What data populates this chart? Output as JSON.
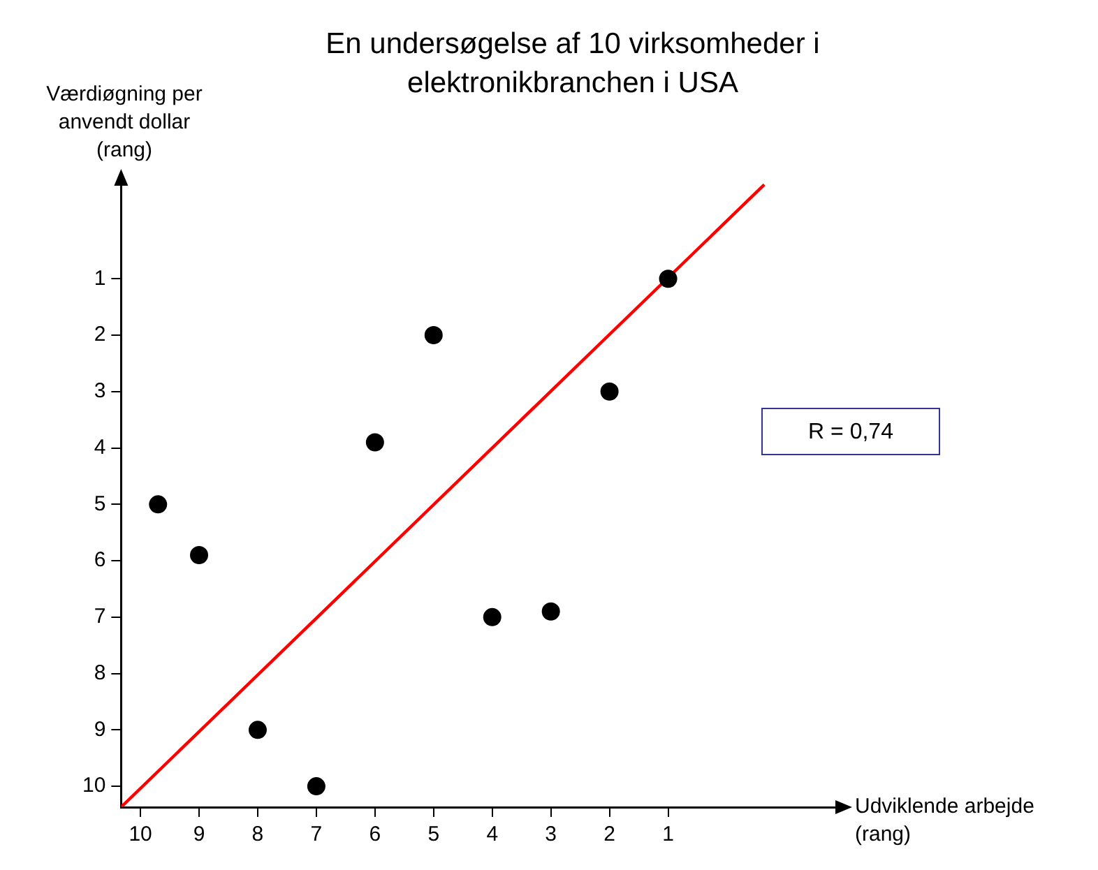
{
  "chart_data": {
    "type": "scatter",
    "title": "En undersøgelse af 10 virksomheder i elektronikbranchen i USA",
    "xlabel": "Udviklende arbejde (rang)",
    "ylabel": "Værdiøgning per anvendt dollar (rang)",
    "xlim": [
      10.33,
      -1.9
    ],
    "ylim": [
      10.37,
      -0.7
    ],
    "xticks": [
      10,
      9,
      8,
      7,
      6,
      5,
      4,
      3,
      2,
      1
    ],
    "yticks": [
      1,
      2,
      3,
      4,
      5,
      6,
      7,
      8,
      9,
      10
    ],
    "grid": false,
    "legend": false,
    "marker": "circle",
    "series": [
      {
        "type": "scatter",
        "color": "#000000",
        "x": [
          9.7,
          9,
          8,
          7,
          6,
          5,
          4,
          3,
          2,
          1
        ],
        "values": [
          5,
          5.9,
          9,
          10,
          3.9,
          2,
          7,
          6.9,
          3,
          1
        ]
      },
      {
        "type": "line",
        "color": "#ff0000",
        "marker": "none",
        "line_style": "solid",
        "x": [
          10.33,
          -0.64
        ],
        "values": [
          10.37,
          -0.67
        ]
      }
    ],
    "annotations": [
      "R = 0,74"
    ]
  }
}
